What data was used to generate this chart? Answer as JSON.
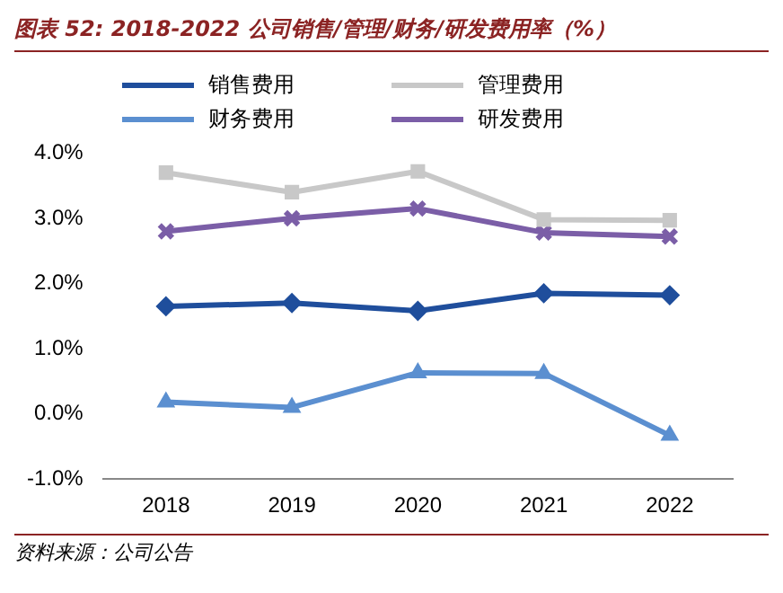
{
  "chart_data": {
    "type": "line",
    "title": "图表 52:  2018-2022 公司销售/管理/财务/研发费用率（%）",
    "categories": [
      "2018",
      "2019",
      "2020",
      "2021",
      "2022"
    ],
    "series": [
      {
        "name": "销售费用",
        "color": "#1f4e9c",
        "marker": "diamond",
        "values": [
          1.65,
          1.7,
          1.58,
          1.85,
          1.82
        ]
      },
      {
        "name": "管理费用",
        "color": "#c8c8c8",
        "marker": "square",
        "values": [
          3.7,
          3.4,
          3.72,
          2.98,
          2.97
        ]
      },
      {
        "name": "财务费用",
        "color": "#5b8fd0",
        "marker": "triangle",
        "values": [
          0.18,
          0.1,
          0.63,
          0.62,
          -0.33
        ]
      },
      {
        "name": "研发费用",
        "color": "#7b5ea7",
        "marker": "cross",
        "values": [
          2.8,
          3.0,
          3.15,
          2.78,
          2.72
        ]
      }
    ],
    "ylim": [
      -1,
      4
    ],
    "yticks": [
      {
        "value": -1,
        "label": "-1.0%"
      },
      {
        "value": 0,
        "label": "0.0%"
      },
      {
        "value": 1,
        "label": "1.0%"
      },
      {
        "value": 2,
        "label": "2.0%"
      },
      {
        "value": 3,
        "label": "3.0%"
      },
      {
        "value": 4,
        "label": "4.0%"
      }
    ],
    "grid": false,
    "legend": "top",
    "line_style": "solid",
    "annotations": [
      "资料来源：公司公告"
    ]
  }
}
